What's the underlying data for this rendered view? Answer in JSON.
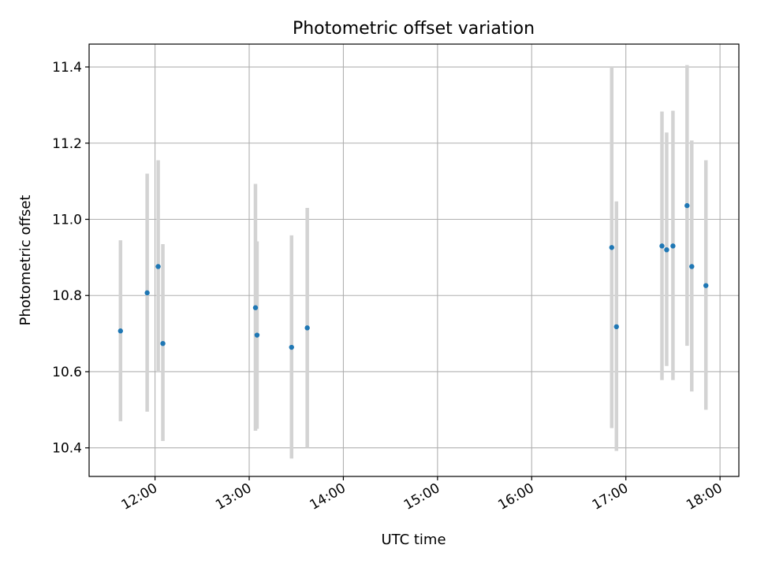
{
  "chart_data": {
    "type": "scatter",
    "title": "Photometric offset variation",
    "xlabel": "UTC time",
    "ylabel": "Photometric offset",
    "xlim": [
      "11:18",
      "18:12"
    ],
    "ylim": [
      10.325,
      11.46
    ],
    "x_ticks": [
      "12:00",
      "13:00",
      "14:00",
      "15:00",
      "16:00",
      "17:00",
      "18:00"
    ],
    "y_ticks": [
      10.4,
      10.6,
      10.8,
      11.0,
      11.2,
      11.4
    ],
    "grid": true,
    "colors": {
      "point": "#1f77b4",
      "error_bar": "#d3d3d3"
    },
    "series": [
      {
        "points": [
          {
            "x": "11:38",
            "y": 10.707,
            "ylow": 10.47,
            "yhigh": 10.945
          },
          {
            "x": "11:55",
            "y": 10.807,
            "ylow": 10.495,
            "yhigh": 11.12
          },
          {
            "x": "12:02",
            "y": 10.876,
            "ylow": 10.6,
            "yhigh": 11.155
          },
          {
            "x": "12:05",
            "y": 10.674,
            "ylow": 10.418,
            "yhigh": 10.935
          },
          {
            "x": "13:04",
            "y": 10.768,
            "ylow": 10.445,
            "yhigh": 11.093
          },
          {
            "x": "13:05",
            "y": 10.696,
            "ylow": 10.45,
            "yhigh": 10.942
          },
          {
            "x": "13:27",
            "y": 10.664,
            "ylow": 10.372,
            "yhigh": 10.958
          },
          {
            "x": "13:37",
            "y": 10.715,
            "ylow": 10.4,
            "yhigh": 11.03
          },
          {
            "x": "16:51",
            "y": 10.926,
            "ylow": 10.452,
            "yhigh": 11.4
          },
          {
            "x": "16:54",
            "y": 10.718,
            "ylow": 10.392,
            "yhigh": 11.047
          },
          {
            "x": "17:23",
            "y": 10.93,
            "ylow": 10.578,
            "yhigh": 11.283
          },
          {
            "x": "17:26",
            "y": 10.92,
            "ylow": 10.615,
            "yhigh": 11.228
          },
          {
            "x": "17:30",
            "y": 10.93,
            "ylow": 10.578,
            "yhigh": 11.285
          },
          {
            "x": "17:39",
            "y": 11.036,
            "ylow": 10.668,
            "yhigh": 11.405
          },
          {
            "x": "17:42",
            "y": 10.876,
            "ylow": 10.548,
            "yhigh": 11.207
          },
          {
            "x": "17:51",
            "y": 10.826,
            "ylow": 10.5,
            "yhigh": 11.155
          }
        ]
      }
    ]
  }
}
